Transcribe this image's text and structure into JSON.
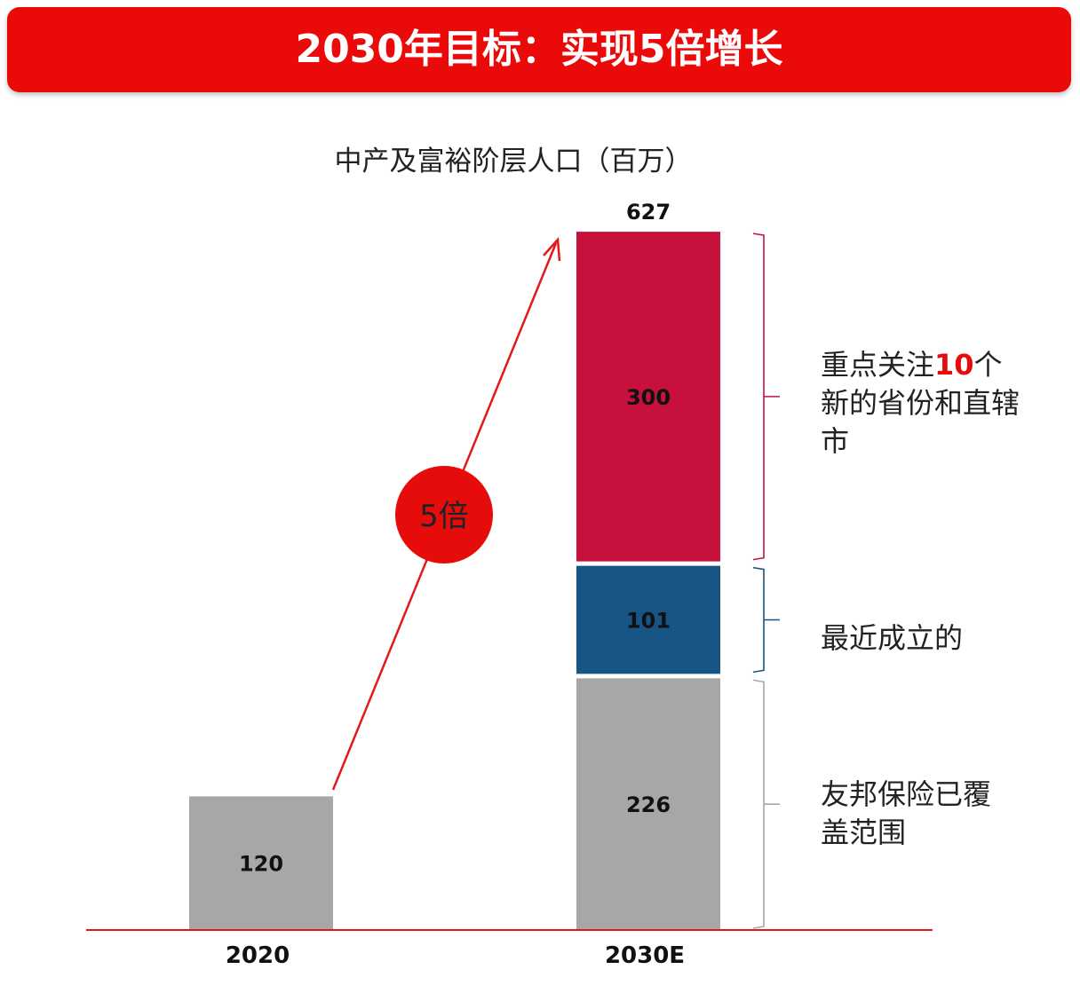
{
  "header": {
    "title": "2030年目标：实现5倍增长"
  },
  "colors": {
    "banner": "#ea0a0a",
    "red_segment": "#c8103c",
    "blue_segment": "#175584",
    "gray_segment": "#a7a7a9",
    "axis": "#e01a1a",
    "growth_circle": "#e60c0c"
  },
  "chart_data": {
    "type": "stacked-bar",
    "title": "中产及富裕阶层人口（百万）",
    "categories": [
      "2020",
      "2030E"
    ],
    "totals": {
      "2030E": "627"
    },
    "bars": [
      {
        "category": "2020",
        "segments": [
          {
            "value": 120,
            "label": "120",
            "color": "#a7a7a9"
          }
        ]
      },
      {
        "category": "2030E",
        "segments": [
          {
            "value": 226,
            "label": "226",
            "color": "#a7a7a9"
          },
          {
            "value": 101,
            "label": "101",
            "color": "#175584"
          },
          {
            "value": 300,
            "label": "300",
            "color": "#c8103c"
          }
        ]
      }
    ],
    "growth_annotation": "5倍",
    "brackets": [
      {
        "segment": "300",
        "parts": [
          "重点关注",
          "10",
          "个新的省份和直辖市"
        ]
      },
      {
        "segment": "101",
        "parts": [
          "最近成立的"
        ]
      },
      {
        "segment": "226",
        "parts": [
          "友邦保险已覆盖范围"
        ]
      }
    ]
  }
}
